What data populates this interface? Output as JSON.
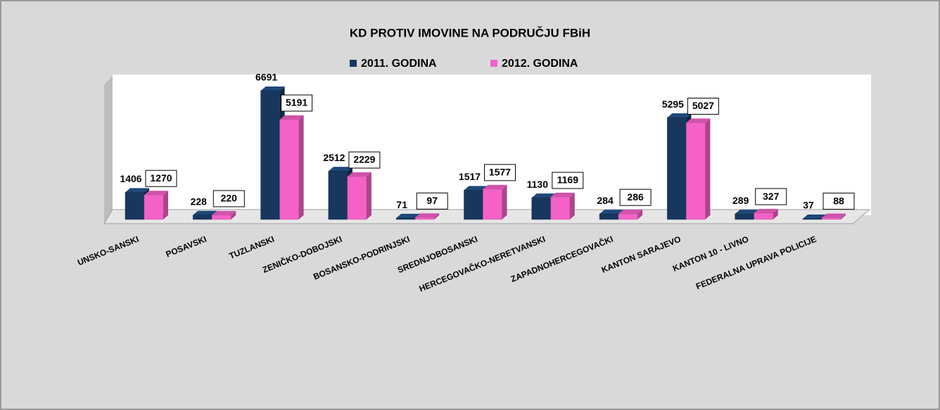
{
  "chart_data": {
    "type": "bar3d",
    "title": "KD  PROTIV  IMOVINE  NA PODRUČJU FBiH",
    "categories": [
      "UNSKO-SANSKI",
      "POSAVSKI",
      "TUZLANSKI",
      "ZENIČKO-DOBOJSKI",
      "BOSANSKO-PODRINJSKI",
      "SREDNJOBOSANSKI",
      "HERCEGOVAČKO-NERETVANSKI",
      "ZAPADNOHERCEGOVAČKI",
      "KANTON SARAJEVO",
      "KANTON 10 - LIVNO",
      "FEDERALNA UPRAVA POLICIJE"
    ],
    "series": [
      {
        "name": "2011. GODINA",
        "color": "#17375e",
        "values": [
          1406,
          228,
          6691,
          2512,
          71,
          1517,
          1130,
          284,
          5295,
          289,
          37
        ]
      },
      {
        "name": "2012. GODINA",
        "color": "#f462c8",
        "values": [
          1270,
          220,
          5191,
          2229,
          97,
          1577,
          1169,
          286,
          5027,
          327,
          88
        ]
      }
    ]
  }
}
